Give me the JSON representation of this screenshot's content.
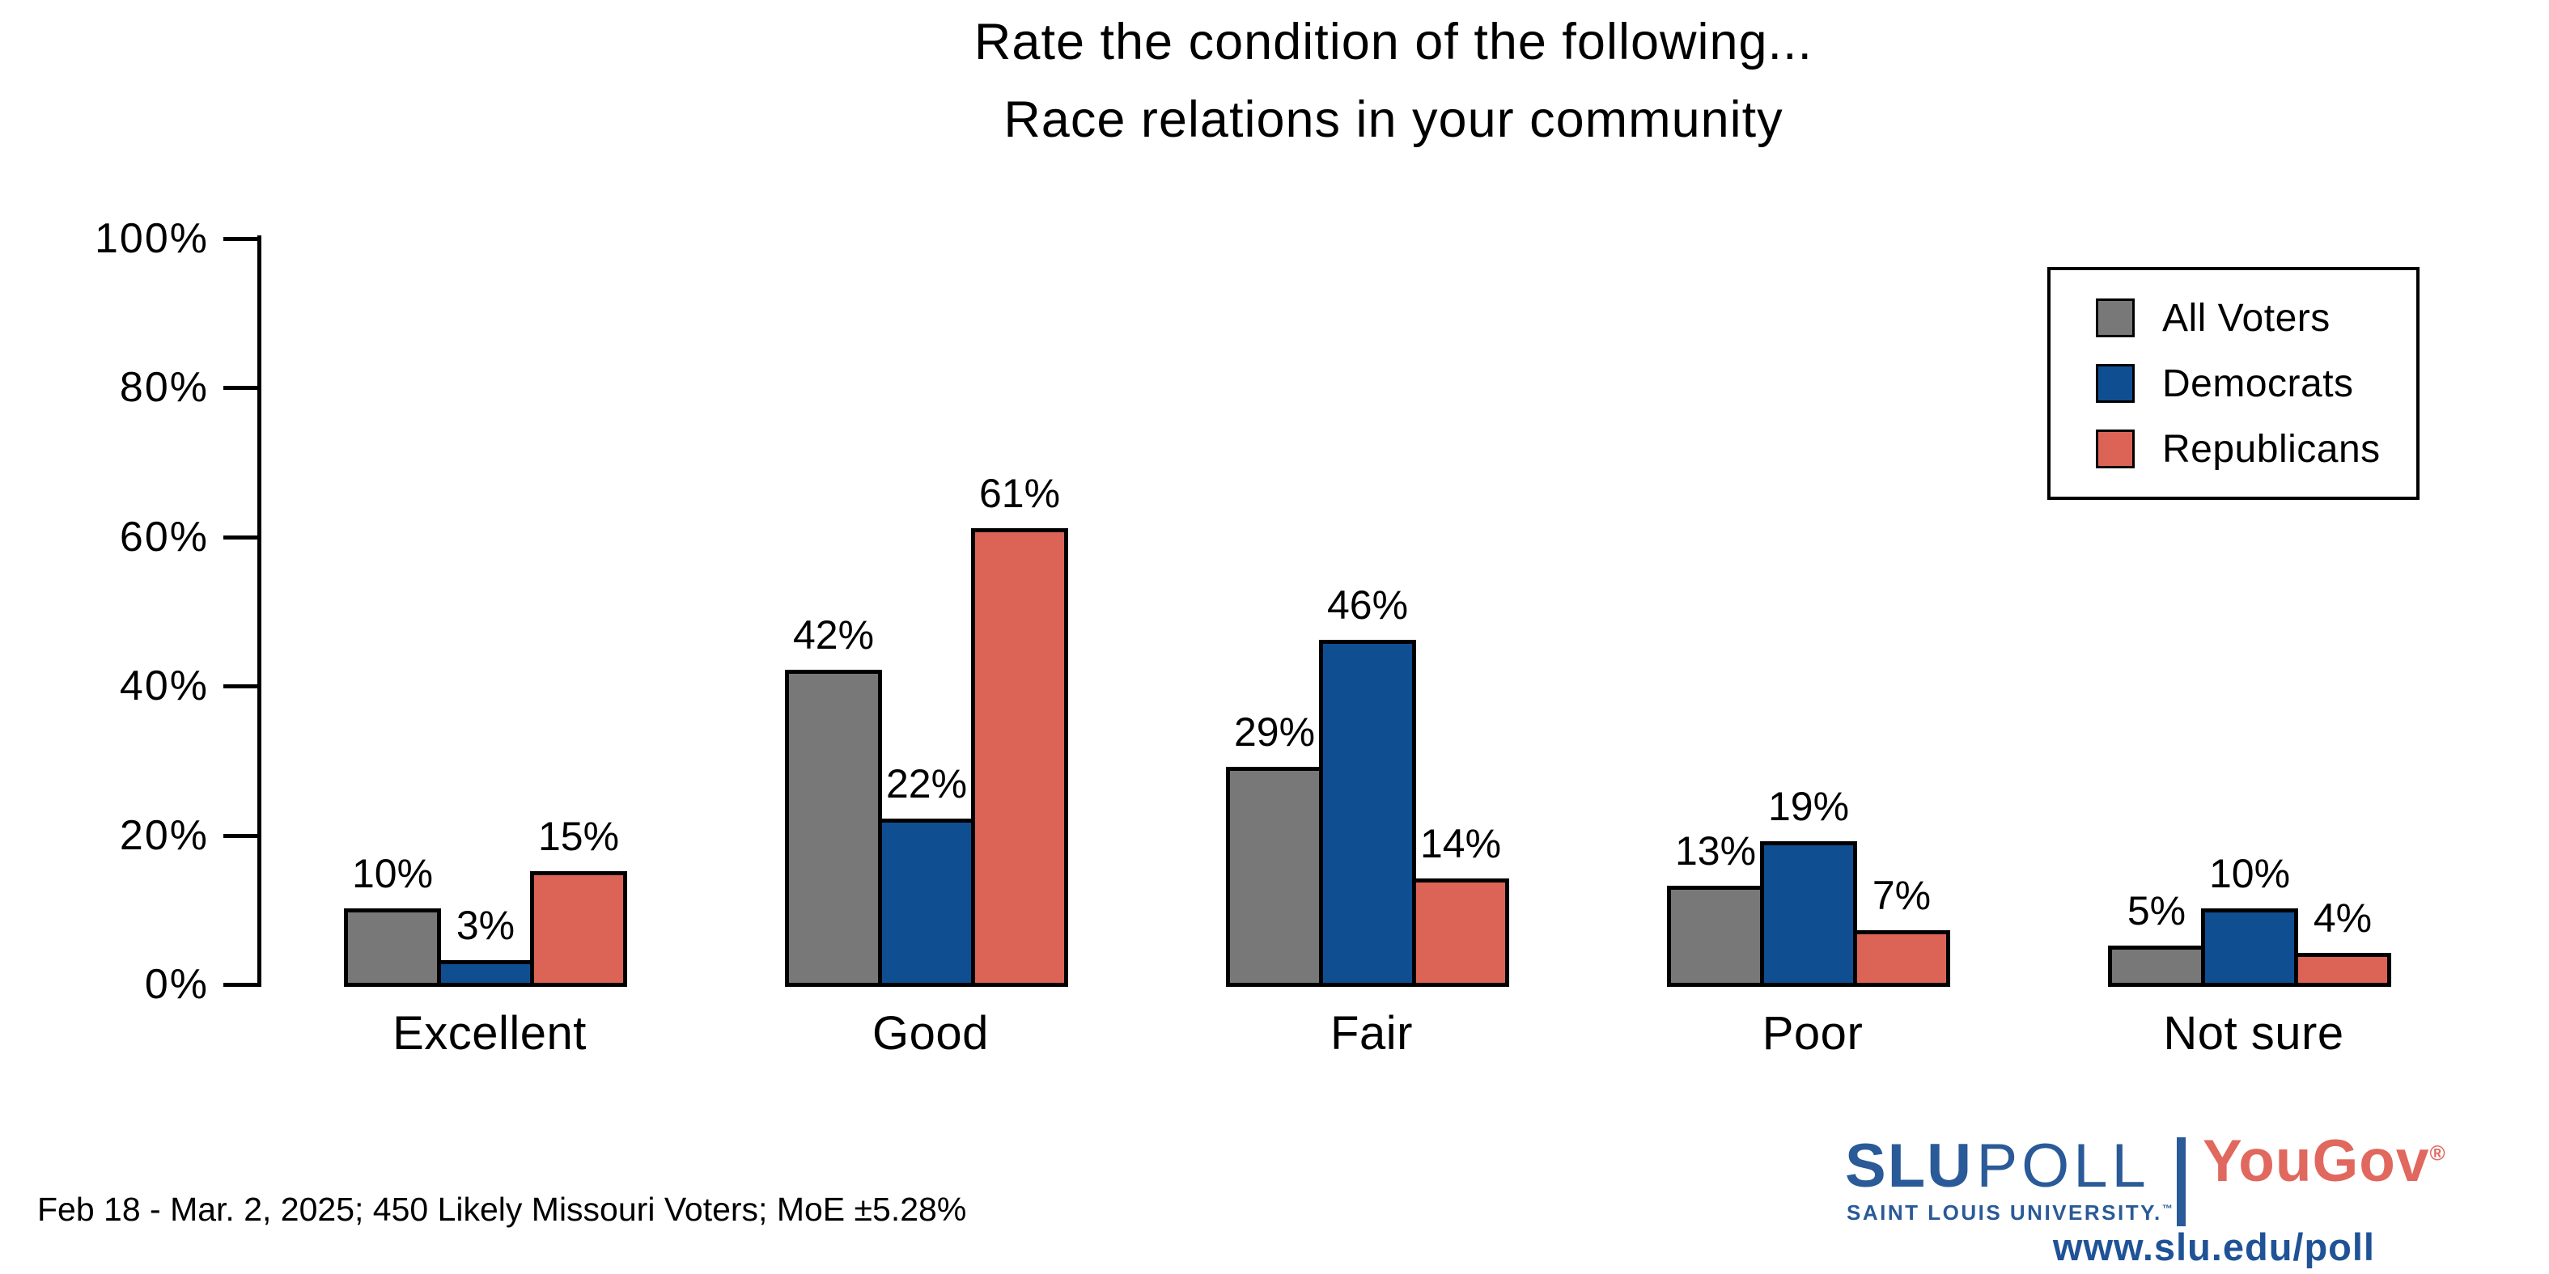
{
  "title": {
    "line1": "Rate the condition of the following...",
    "line2": "Race relations in your community"
  },
  "chart_data": {
    "type": "bar",
    "categories": [
      "Excellent",
      "Good",
      "Fair",
      "Poor",
      "Not sure"
    ],
    "series": [
      {
        "name": "All Voters",
        "color": "#787878",
        "values": [
          10,
          42,
          29,
          13,
          5
        ]
      },
      {
        "name": "Democrats",
        "color": "#104e92",
        "values": [
          3,
          22,
          46,
          19,
          10
        ]
      },
      {
        "name": "Republicans",
        "color": "#db6457",
        "values": [
          15,
          61,
          14,
          7,
          4
        ]
      }
    ],
    "value_labels": [
      [
        "10%",
        "42%",
        "29%",
        "13%",
        "5%"
      ],
      [
        "3%",
        "22%",
        "46%",
        "19%",
        "10%"
      ],
      [
        "15%",
        "61%",
        "14%",
        "7%",
        "4%"
      ]
    ],
    "title": "Rate the condition of the following... Race relations in your community",
    "xlabel": "",
    "ylabel": "",
    "ylim": [
      0,
      100
    ],
    "yticks": [
      0,
      20,
      40,
      60,
      80,
      100
    ],
    "ytick_labels": [
      "0%",
      "20%",
      "40%",
      "60%",
      "80%",
      "100%"
    ],
    "grid": false,
    "legend_position": "upper right",
    "bar_edge_color": "#000000"
  },
  "legend": {
    "items": [
      "All Voters",
      "Democrats",
      "Republicans"
    ]
  },
  "footer": {
    "note": "Feb 18 - Mar. 2, 2025; 450 Likely Missouri Voters; MoE ±5.28%"
  },
  "branding": {
    "slu": "SLU",
    "poll": "POLL",
    "slu_subtitle": "SAINT LOUIS UNIVERSITY.",
    "slu_trademark": "TM",
    "yougov": "YouGov",
    "registered_mark": "®",
    "url": "www.slu.edu/poll",
    "slu_blue": "#2a5a97",
    "url_blue": "#1f5296",
    "yougov_red": "#e0685e"
  }
}
